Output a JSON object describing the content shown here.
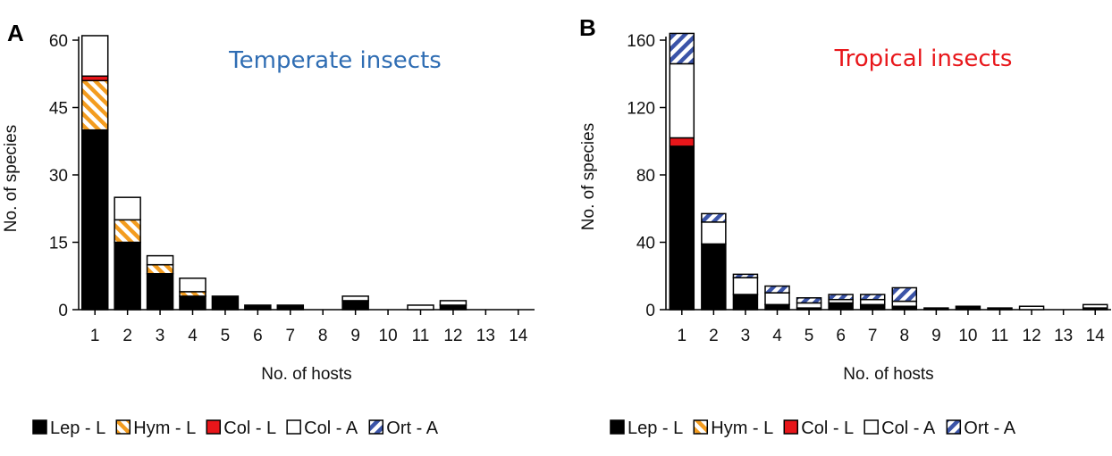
{
  "colors": {
    "Lep - L": "#000000",
    "Hym - L": "#f39c1f",
    "Col - L": "#e8161a",
    "Col - A": "#ffffff",
    "Ort - A": "#3b54a8",
    "temperate_note": "#2f6db3",
    "tropical_note": "#e8161a"
  },
  "legend": [
    {
      "key": "Lep - L",
      "label": "Lep - L",
      "pattern": "solid"
    },
    {
      "key": "Hym - L",
      "label": "Hym - L",
      "pattern": "hatch"
    },
    {
      "key": "Col - L",
      "label": "Col - L",
      "pattern": "solid"
    },
    {
      "key": "Col - A",
      "label": "Col - A",
      "pattern": "solid"
    },
    {
      "key": "Ort - A",
      "label": "Ort - A",
      "pattern": "hatch"
    }
  ],
  "chart_data": [
    {
      "type": "bar",
      "stacked": true,
      "panel": "A",
      "annotation": "Temperate insects",
      "annotation_color_key": "temperate_note",
      "xlabel": "No. of hosts",
      "ylabel": "No. of species",
      "ylim": [
        0,
        60
      ],
      "yticks": [
        0,
        15,
        30,
        45,
        60
      ],
      "categories": [
        "1",
        "2",
        "3",
        "4",
        "5",
        "6",
        "7",
        "8",
        "9",
        "10",
        "11",
        "12",
        "13",
        "14"
      ],
      "series": [
        {
          "name": "Lep - L",
          "values": [
            40,
            15,
            8,
            3,
            3,
            1,
            1,
            0,
            2,
            0,
            0,
            1,
            0,
            0
          ]
        },
        {
          "name": "Hym - L",
          "values": [
            11,
            5,
            2,
            1,
            0,
            0,
            0,
            0,
            0,
            0,
            0,
            0,
            0,
            0
          ]
        },
        {
          "name": "Col - L",
          "values": [
            1,
            0,
            0,
            0,
            0,
            0,
            0,
            0,
            0,
            0,
            0,
            0,
            0,
            0
          ]
        },
        {
          "name": "Col - A",
          "values": [
            9,
            5,
            2,
            3,
            0,
            0,
            0,
            0,
            1,
            0,
            1,
            1,
            0,
            0
          ]
        },
        {
          "name": "Ort - A",
          "values": [
            0,
            0,
            0,
            0,
            0,
            0,
            0,
            0,
            0,
            0,
            0,
            0,
            0,
            0
          ]
        }
      ]
    },
    {
      "type": "bar",
      "stacked": true,
      "panel": "B",
      "annotation": "Tropical insects",
      "annotation_color_key": "tropical_note",
      "xlabel": "No. of hosts",
      "ylabel": "No. of species",
      "ylim": [
        0,
        160
      ],
      "yticks": [
        0,
        40,
        80,
        120,
        160
      ],
      "categories": [
        "1",
        "2",
        "3",
        "4",
        "5",
        "6",
        "7",
        "8",
        "9",
        "10",
        "11",
        "12",
        "13",
        "14"
      ],
      "series": [
        {
          "name": "Lep - L",
          "values": [
            97,
            39,
            9,
            3,
            1,
            4,
            3,
            2,
            1,
            2,
            1,
            0,
            0,
            1
          ]
        },
        {
          "name": "Hym - L",
          "values": [
            0,
            0,
            0,
            0,
            0,
            0,
            0,
            0,
            0,
            0,
            0,
            0,
            0,
            0
          ]
        },
        {
          "name": "Col - L",
          "values": [
            5,
            0,
            0,
            0,
            0,
            0,
            0,
            0,
            0,
            0,
            0,
            0,
            0,
            0
          ]
        },
        {
          "name": "Col - A",
          "values": [
            44,
            13,
            10,
            7,
            3,
            2,
            3,
            3,
            0,
            0,
            0,
            2,
            0,
            2
          ]
        },
        {
          "name": "Ort - A",
          "values": [
            18,
            5,
            2,
            4,
            3,
            3,
            3,
            8,
            0,
            0,
            0,
            0,
            0,
            0
          ]
        }
      ]
    }
  ]
}
